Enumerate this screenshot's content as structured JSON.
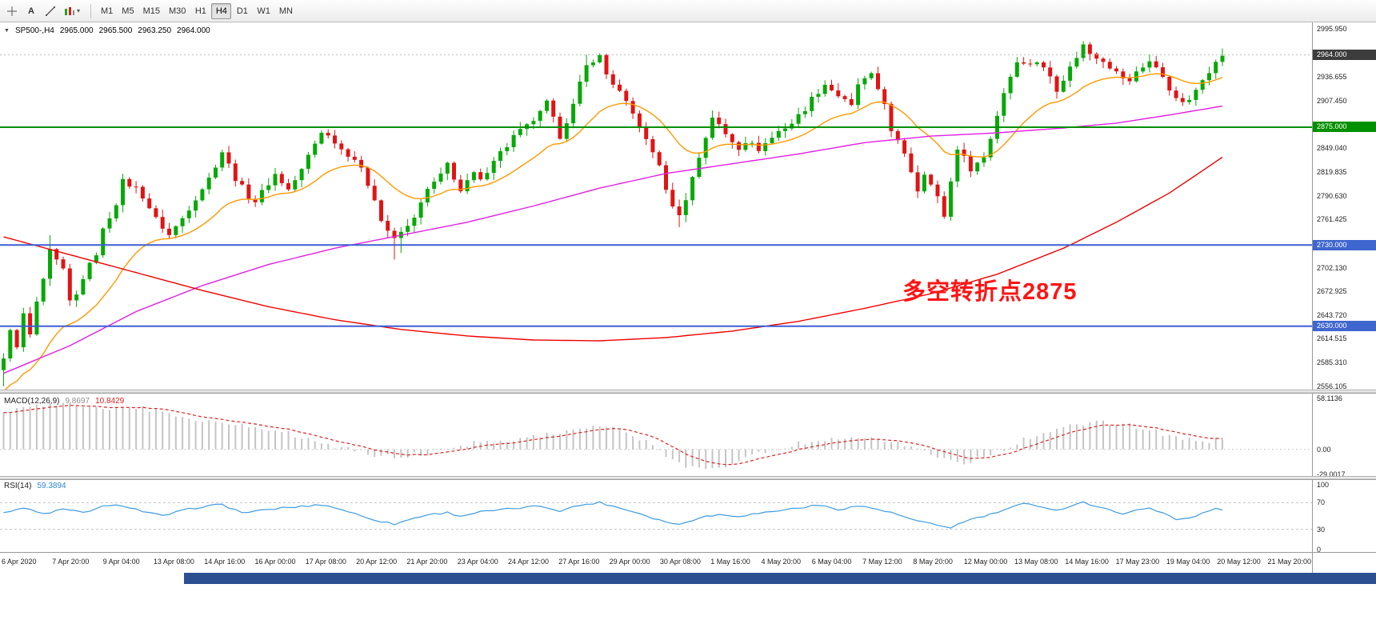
{
  "toolbar": {
    "timeframes": [
      "M1",
      "M5",
      "M15",
      "M30",
      "H1",
      "H4",
      "D1",
      "W1",
      "MN"
    ],
    "active_timeframe": "H4",
    "text_tool_glyph": "A"
  },
  "chart": {
    "header": {
      "symbol": "SP500-,H4",
      "open": "2965.000",
      "high": "2965.500",
      "low": "2963.250",
      "close": "2964.000"
    },
    "annotation": {
      "text": "多空转折点2875",
      "color": "#ff1414"
    },
    "colors": {
      "up": "#07a807",
      "down": "#e01414",
      "ma_fast": "#ff9900",
      "ma_mid": "#e020e0",
      "ma_slow": "#f00000",
      "level_green": "#009000",
      "level_blue": "#3d5fd4",
      "macd_hist": "#c4c4c4",
      "macd_signal": "#e02020",
      "rsi_line": "#3e9bdf"
    }
  },
  "price_axis": {
    "ticks": [
      "2995.950",
      "2936.655",
      "2907.450",
      "2849.040",
      "2819.835",
      "2790.630",
      "2761.425",
      "2702.130",
      "2672.925",
      "2643.720",
      "2614.515",
      "2585.310",
      "2556.105"
    ],
    "markers": [
      {
        "text": "2964.000",
        "price": 2964.0,
        "bg": "#3c3c3c"
      },
      {
        "text": "2875.000",
        "price": 2875.0,
        "bg": "#009000"
      },
      {
        "text": "2730.000",
        "price": 2730.0,
        "bg": "#3f66cf"
      },
      {
        "text": "2630.000",
        "price": 2630.0,
        "bg": "#3f66cf"
      }
    ]
  },
  "time_axis": {
    "labels": [
      "6 Apr 2020",
      "7 Apr 20:00",
      "9 Apr 04:00",
      "13 Apr 08:00",
      "14 Apr 16:00",
      "16 Apr 00:00",
      "17 Apr 08:00",
      "20 Apr 12:00",
      "21 Apr 20:00",
      "23 Apr 04:00",
      "24 Apr 12:00",
      "27 Apr 16:00",
      "29 Apr 00:00",
      "30 Apr 08:00",
      "1 May 16:00",
      "4 May 20:00",
      "6 May 04:00",
      "7 May 12:00",
      "8 May 20:00",
      "12 May 00:00",
      "13 May 08:00",
      "14 May 16:00",
      "17 May 23:00",
      "19 May 04:00",
      "20 May 12:00",
      "21 May 20:00"
    ]
  },
  "macd_panel": {
    "label": "MACD(12,26,9)",
    "main_value": "9.8697",
    "signal_value": "10.8429",
    "axis_labels": [
      "58.1136",
      "0.00",
      "-29.0017"
    ]
  },
  "rsi_panel": {
    "label": "RSI(14)",
    "value": "59.3894",
    "axis_labels": [
      "100",
      "70",
      "30",
      "0"
    ]
  },
  "chart_data": {
    "type": "candlestick",
    "symbol": "SP500-",
    "timeframe": "H4",
    "current_ohlc": {
      "open": 2965.0,
      "high": 2965.5,
      "low": 2963.25,
      "close": 2964.0
    },
    "bars_visible": 185,
    "price_range": [
      2550,
      3002
    ],
    "current_price": 2964.0,
    "levels": [
      {
        "price": 2875,
        "color": "green"
      },
      {
        "price": 2730,
        "color": "blue"
      },
      {
        "price": 2630,
        "color": "blue"
      }
    ],
    "close_anchors": [
      [
        0,
        2588
      ],
      [
        1,
        2628
      ],
      [
        2,
        2602
      ],
      [
        3,
        2645
      ],
      [
        4,
        2618
      ],
      [
        5,
        2660
      ],
      [
        6,
        2685
      ],
      [
        7,
        2722
      ],
      [
        8,
        2710
      ],
      [
        9,
        2698
      ],
      [
        10,
        2660
      ],
      [
        11,
        2668
      ],
      [
        12,
        2690
      ],
      [
        14,
        2720
      ],
      [
        15,
        2748
      ],
      [
        17,
        2782
      ],
      [
        18,
        2808
      ],
      [
        20,
        2800
      ],
      [
        21,
        2790
      ],
      [
        23,
        2762
      ],
      [
        25,
        2742
      ],
      [
        27,
        2763
      ],
      [
        29,
        2788
      ],
      [
        31,
        2812
      ],
      [
        33,
        2845
      ],
      [
        35,
        2812
      ],
      [
        37,
        2790
      ],
      [
        38,
        2784
      ],
      [
        40,
        2806
      ],
      [
        41,
        2817
      ],
      [
        43,
        2798
      ],
      [
        45,
        2822
      ],
      [
        46,
        2840
      ],
      [
        48,
        2870
      ],
      [
        50,
        2858
      ],
      [
        51,
        2848
      ],
      [
        53,
        2836
      ],
      [
        54,
        2822
      ],
      [
        56,
        2788
      ],
      [
        57,
        2760
      ],
      [
        59,
        2736
      ],
      [
        60,
        2746
      ],
      [
        61,
        2752
      ],
      [
        63,
        2780
      ],
      [
        64,
        2798
      ],
      [
        66,
        2815
      ],
      [
        67,
        2830
      ],
      [
        69,
        2796
      ],
      [
        71,
        2818
      ],
      [
        72,
        2808
      ],
      [
        74,
        2836
      ],
      [
        76,
        2852
      ],
      [
        77,
        2864
      ],
      [
        79,
        2876
      ],
      [
        81,
        2892
      ],
      [
        82,
        2905
      ],
      [
        84,
        2864
      ],
      [
        86,
        2902
      ],
      [
        87,
        2928
      ],
      [
        88,
        2950
      ],
      [
        89,
        2958
      ],
      [
        90,
        2962
      ],
      [
        91,
        2940
      ],
      [
        93,
        2918
      ],
      [
        94,
        2904
      ],
      [
        96,
        2878
      ],
      [
        97,
        2858
      ],
      [
        99,
        2830
      ],
      [
        100,
        2795
      ],
      [
        102,
        2765
      ],
      [
        103,
        2788
      ],
      [
        105,
        2838
      ],
      [
        107,
        2888
      ],
      [
        109,
        2866
      ],
      [
        111,
        2850
      ],
      [
        112,
        2858
      ],
      [
        114,
        2848
      ],
      [
        116,
        2862
      ],
      [
        117,
        2870
      ],
      [
        119,
        2880
      ],
      [
        121,
        2898
      ],
      [
        122,
        2910
      ],
      [
        124,
        2928
      ],
      [
        126,
        2914
      ],
      [
        128,
        2900
      ],
      [
        129,
        2928
      ],
      [
        131,
        2938
      ],
      [
        133,
        2906
      ],
      [
        134,
        2868
      ],
      [
        136,
        2844
      ],
      [
        138,
        2798
      ],
      [
        139,
        2820
      ],
      [
        141,
        2788
      ],
      [
        142,
        2766
      ],
      [
        144,
        2850
      ],
      [
        146,
        2824
      ],
      [
        148,
        2838
      ],
      [
        149,
        2862
      ],
      [
        151,
        2918
      ],
      [
        153,
        2958
      ],
      [
        154,
        2952
      ],
      [
        156,
        2956
      ],
      [
        158,
        2938
      ],
      [
        159,
        2922
      ],
      [
        161,
        2948
      ],
      [
        163,
        2976
      ],
      [
        164,
        2966
      ],
      [
        166,
        2958
      ],
      [
        168,
        2942
      ],
      [
        170,
        2930
      ],
      [
        171,
        2944
      ],
      [
        173,
        2956
      ],
      [
        175,
        2938
      ],
      [
        177,
        2908
      ],
      [
        179,
        2906
      ],
      [
        181,
        2936
      ],
      [
        183,
        2954
      ],
      [
        184,
        2964
      ]
    ],
    "wick_low_overrides": [
      [
        0,
        2556
      ],
      [
        1,
        2586
      ],
      [
        2,
        2612
      ],
      [
        59,
        2712
      ],
      [
        60,
        2720
      ],
      [
        102,
        2752
      ],
      [
        142,
        2762
      ]
    ],
    "wick_high_overrides": [
      [
        7,
        2742
      ],
      [
        88,
        2964
      ],
      [
        90,
        2966
      ],
      [
        163,
        2981
      ]
    ],
    "ma_fast_period": 18,
    "ma_fast_seed": 2545,
    "ma_mid_anchors": [
      [
        0,
        2572
      ],
      [
        10,
        2606
      ],
      [
        20,
        2648
      ],
      [
        30,
        2680
      ],
      [
        40,
        2706
      ],
      [
        50,
        2726
      ],
      [
        60,
        2742
      ],
      [
        70,
        2758
      ],
      [
        80,
        2778
      ],
      [
        90,
        2800
      ],
      [
        100,
        2818
      ],
      [
        110,
        2830
      ],
      [
        120,
        2842
      ],
      [
        130,
        2856
      ],
      [
        140,
        2864
      ],
      [
        150,
        2868
      ],
      [
        160,
        2874
      ],
      [
        168,
        2880
      ],
      [
        176,
        2890
      ],
      [
        184,
        2901
      ]
    ],
    "ma_slow_anchors": [
      [
        0,
        2740
      ],
      [
        10,
        2718
      ],
      [
        20,
        2696
      ],
      [
        30,
        2674
      ],
      [
        40,
        2654
      ],
      [
        50,
        2638
      ],
      [
        60,
        2626
      ],
      [
        70,
        2618
      ],
      [
        80,
        2613
      ],
      [
        90,
        2612
      ],
      [
        100,
        2616
      ],
      [
        110,
        2624
      ],
      [
        120,
        2636
      ],
      [
        130,
        2652
      ],
      [
        140,
        2670
      ],
      [
        150,
        2694
      ],
      [
        160,
        2726
      ],
      [
        168,
        2758
      ],
      [
        176,
        2794
      ],
      [
        184,
        2838
      ]
    ],
    "macd": {
      "range": [
        -30.4,
        63.5
      ],
      "anchors": [
        [
          0,
          40
        ],
        [
          4,
          48
        ],
        [
          8,
          52
        ],
        [
          12,
          50
        ],
        [
          16,
          46
        ],
        [
          20,
          48
        ],
        [
          24,
          42
        ],
        [
          28,
          36
        ],
        [
          32,
          31
        ],
        [
          36,
          27
        ],
        [
          40,
          24
        ],
        [
          44,
          16
        ],
        [
          48,
          8
        ],
        [
          52,
          0
        ],
        [
          56,
          -7
        ],
        [
          60,
          -9
        ],
        [
          64,
          -4
        ],
        [
          68,
          3
        ],
        [
          72,
          8
        ],
        [
          76,
          11
        ],
        [
          80,
          15
        ],
        [
          84,
          20
        ],
        [
          88,
          25
        ],
        [
          91,
          26
        ],
        [
          94,
          18
        ],
        [
          97,
          8
        ],
        [
          100,
          -6
        ],
        [
          103,
          -18
        ],
        [
          106,
          -24
        ],
        [
          109,
          -18
        ],
        [
          112,
          -9
        ],
        [
          115,
          -3
        ],
        [
          118,
          3
        ],
        [
          121,
          8
        ],
        [
          124,
          12
        ],
        [
          127,
          13
        ],
        [
          130,
          15
        ],
        [
          133,
          11
        ],
        [
          136,
          5
        ],
        [
          139,
          -3
        ],
        [
          142,
          -11
        ],
        [
          145,
          -15
        ],
        [
          148,
          -9
        ],
        [
          151,
          1
        ],
        [
          154,
          11
        ],
        [
          157,
          18
        ],
        [
          160,
          24
        ],
        [
          163,
          29
        ],
        [
          166,
          31
        ],
        [
          169,
          28
        ],
        [
          172,
          24
        ],
        [
          175,
          18
        ],
        [
          178,
          12
        ],
        [
          181,
          9
        ],
        [
          184,
          10
        ]
      ]
    },
    "rsi": {
      "range": [
        0,
        100
      ],
      "levels": [
        70,
        30
      ],
      "anchors": [
        [
          0,
          56
        ],
        [
          3,
          62
        ],
        [
          6,
          53
        ],
        [
          9,
          60
        ],
        [
          12,
          55
        ],
        [
          15,
          64
        ],
        [
          18,
          66
        ],
        [
          21,
          57
        ],
        [
          24,
          50
        ],
        [
          27,
          58
        ],
        [
          30,
          64
        ],
        [
          33,
          67
        ],
        [
          36,
          55
        ],
        [
          39,
          58
        ],
        [
          42,
          62
        ],
        [
          45,
          64
        ],
        [
          48,
          67
        ],
        [
          51,
          60
        ],
        [
          54,
          50
        ],
        [
          57,
          42
        ],
        [
          59,
          38
        ],
        [
          62,
          47
        ],
        [
          64,
          52
        ],
        [
          67,
          55
        ],
        [
          69,
          50
        ],
        [
          72,
          56
        ],
        [
          75,
          59
        ],
        [
          78,
          62
        ],
        [
          81,
          65
        ],
        [
          84,
          58
        ],
        [
          87,
          66
        ],
        [
          90,
          70
        ],
        [
          93,
          62
        ],
        [
          96,
          54
        ],
        [
          99,
          44
        ],
        [
          102,
          37
        ],
        [
          105,
          48
        ],
        [
          108,
          52
        ],
        [
          111,
          50
        ],
        [
          114,
          54
        ],
        [
          117,
          58
        ],
        [
          120,
          62
        ],
        [
          123,
          66
        ],
        [
          126,
          60
        ],
        [
          129,
          65
        ],
        [
          132,
          60
        ],
        [
          135,
          52
        ],
        [
          138,
          42
        ],
        [
          141,
          36
        ],
        [
          143,
          33
        ],
        [
          146,
          45
        ],
        [
          149,
          52
        ],
        [
          152,
          62
        ],
        [
          154,
          68
        ],
        [
          157,
          64
        ],
        [
          159,
          58
        ],
        [
          161,
          65
        ],
        [
          163,
          71
        ],
        [
          165,
          63
        ],
        [
          167,
          59
        ],
        [
          169,
          54
        ],
        [
          171,
          58
        ],
        [
          173,
          63
        ],
        [
          175,
          54
        ],
        [
          177,
          45
        ],
        [
          179,
          47
        ],
        [
          181,
          55
        ],
        [
          183,
          61
        ],
        [
          184,
          59
        ]
      ]
    }
  }
}
